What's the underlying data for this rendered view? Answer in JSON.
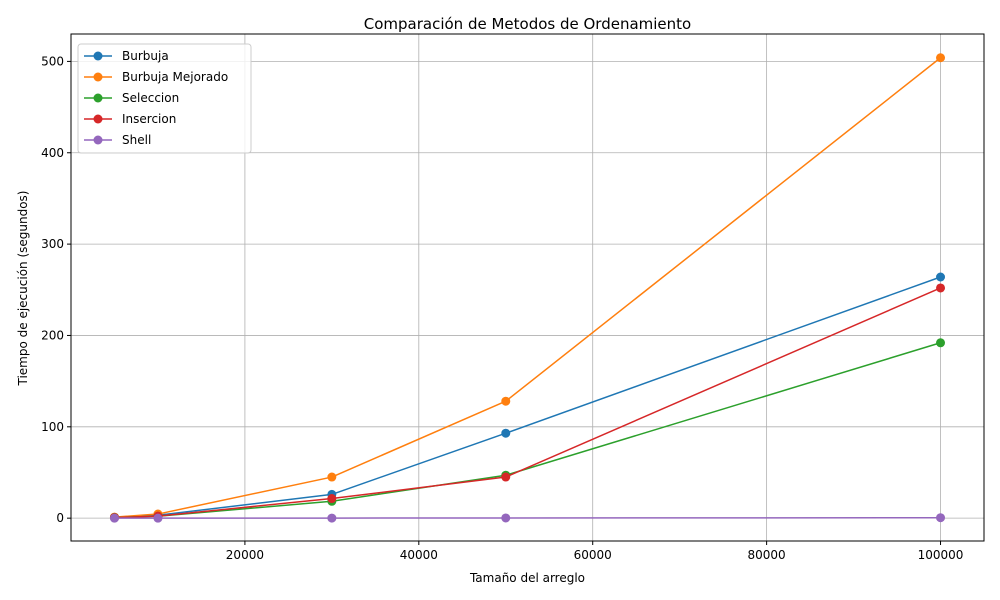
{
  "chart_data": {
    "type": "line",
    "title": "Comparación de Metodos de Ordenamiento",
    "xlabel": "Tamaño del arreglo",
    "ylabel": "Tiempo de ejecución (segundos)",
    "xlim": [
      0,
      105000
    ],
    "ylim": [
      -25,
      530
    ],
    "xticks": [
      20000,
      40000,
      60000,
      80000,
      100000
    ],
    "yticks": [
      0,
      100,
      200,
      300,
      400,
      500
    ],
    "grid": true,
    "legend_position": "top-left",
    "x": [
      5000,
      10000,
      30000,
      50000,
      100000
    ],
    "series": [
      {
        "name": "Burbuja",
        "color": "#1f77b4",
        "values": [
          0.9,
          3.2,
          26,
          93,
          264
        ]
      },
      {
        "name": "Burbuja Mejorado",
        "color": "#ff7f0e",
        "values": [
          1.2,
          4.5,
          45,
          128,
          504
        ]
      },
      {
        "name": "Seleccion",
        "color": "#2ca02c",
        "values": [
          0.7,
          2.1,
          18.5,
          47,
          192
        ]
      },
      {
        "name": "Insercion",
        "color": "#d62728",
        "values": [
          0.6,
          2.2,
          21.5,
          45,
          252
        ]
      },
      {
        "name": "Shell",
        "color": "#9467bd",
        "values": [
          0.01,
          0.03,
          0.1,
          0.2,
          0.5
        ]
      }
    ]
  }
}
